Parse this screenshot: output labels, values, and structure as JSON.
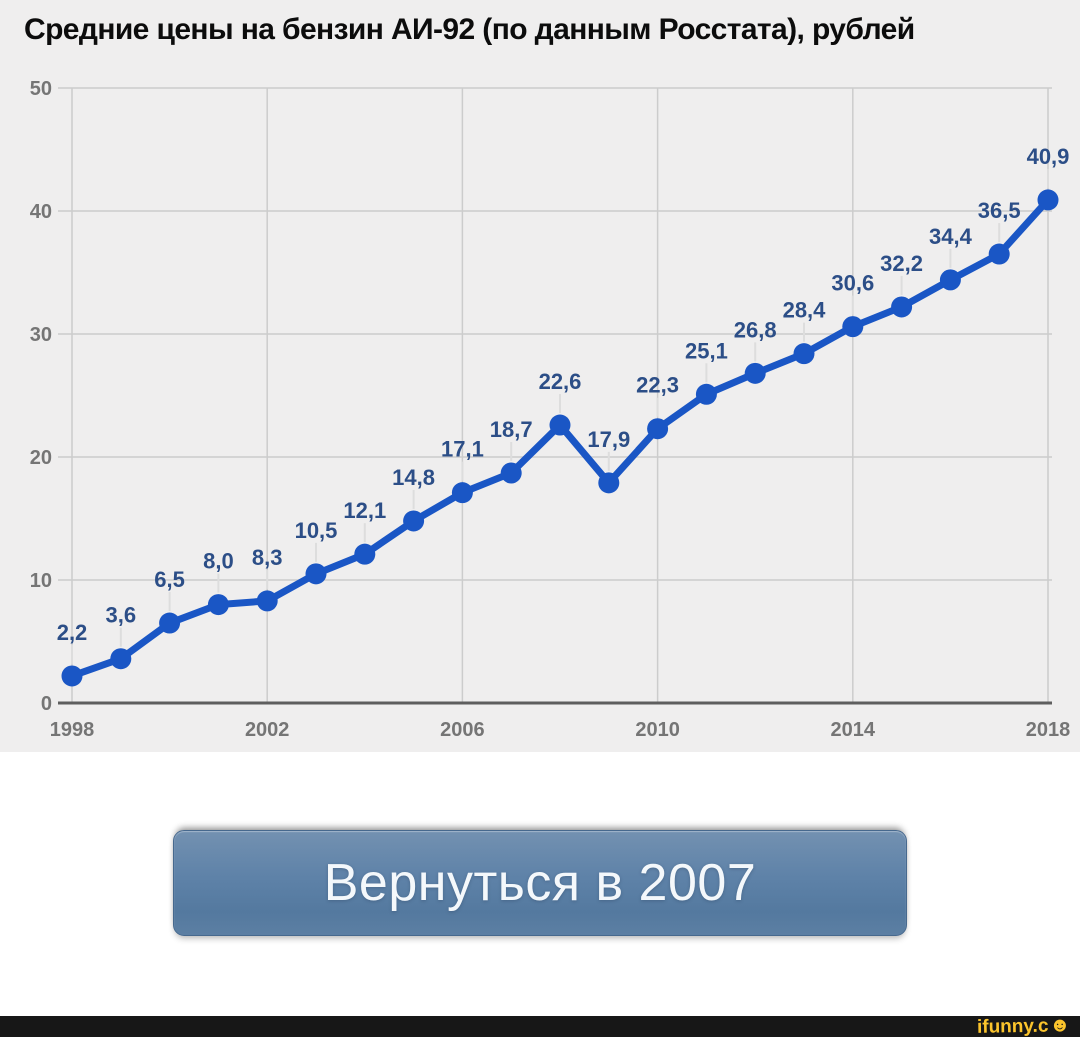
{
  "chart_data": {
    "type": "line",
    "title": "Средние цены на бензин АИ-92 (по данным Росстата), рублей",
    "x": [
      1998,
      1999,
      2000,
      2001,
      2002,
      2003,
      2004,
      2005,
      2006,
      2007,
      2008,
      2009,
      2010,
      2011,
      2012,
      2013,
      2014,
      2015,
      2016,
      2017,
      2018
    ],
    "values": [
      2.2,
      3.6,
      6.5,
      8.0,
      8.3,
      10.5,
      12.1,
      14.8,
      17.1,
      18.7,
      22.6,
      17.9,
      22.3,
      25.1,
      26.8,
      28.4,
      30.6,
      32.2,
      34.4,
      36.5,
      40.9
    ],
    "point_labels": [
      "2,2",
      "3,6",
      "6,5",
      "8,0",
      "8,3",
      "10,5",
      "12,1",
      "14,8",
      "17,1",
      "18,7",
      "22,6",
      "17,9",
      "22,3",
      "25,1",
      "26,8",
      "28,4",
      "30,6",
      "32,2",
      "34,4",
      "36,5",
      "40,9"
    ],
    "xticks": [
      1998,
      2002,
      2006,
      2010,
      2014,
      2018
    ],
    "yticks": [
      0,
      10,
      20,
      30,
      40,
      50
    ],
    "ylim": [
      0,
      50
    ],
    "xlabel": "",
    "ylabel": "",
    "grid": true,
    "legend": "none",
    "colors": {
      "line": "#1a56c5",
      "point": "#1a56c5",
      "point_label": "#2c4e87",
      "grid": "#cccccc",
      "axis_line": "#5e5e5e",
      "tick_label": "#757575",
      "leader": "#dddddd",
      "plot_bg": "#efeeee"
    }
  },
  "button": {
    "label": "Вернуться в 2007"
  },
  "watermark": {
    "text": "ifunny.c",
    "smiley": "☻",
    "color": "#fbc42c"
  }
}
